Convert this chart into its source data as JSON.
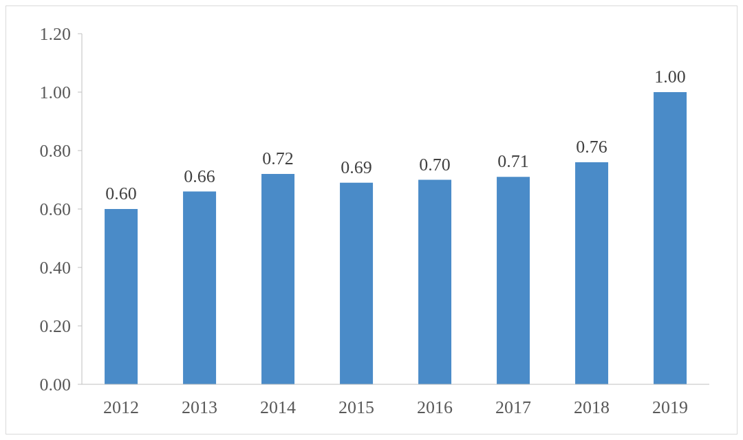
{
  "chart_data": {
    "type": "bar",
    "categories": [
      "2012",
      "2013",
      "2014",
      "2015",
      "2016",
      "2017",
      "2018",
      "2019"
    ],
    "values": [
      0.6,
      0.66,
      0.72,
      0.69,
      0.7,
      0.71,
      0.76,
      1.0
    ],
    "value_labels": [
      "0.60",
      "0.66",
      "0.72",
      "0.69",
      "0.70",
      "0.71",
      "0.76",
      "1.00"
    ],
    "color": "#4a8bc8",
    "ylim": [
      0,
      1.2
    ],
    "yticks": [
      {
        "value": 0,
        "label": "0.00"
      },
      {
        "value": 0.2,
        "label": "0.20"
      },
      {
        "value": 0.4,
        "label": "0.40"
      },
      {
        "value": 0.6,
        "label": "0.60"
      },
      {
        "value": 0.8,
        "label": "0.80"
      },
      {
        "value": 1.0,
        "label": "1.00"
      },
      {
        "value": 1.2,
        "label": "1.20"
      }
    ],
    "grid": false,
    "legend": false
  }
}
